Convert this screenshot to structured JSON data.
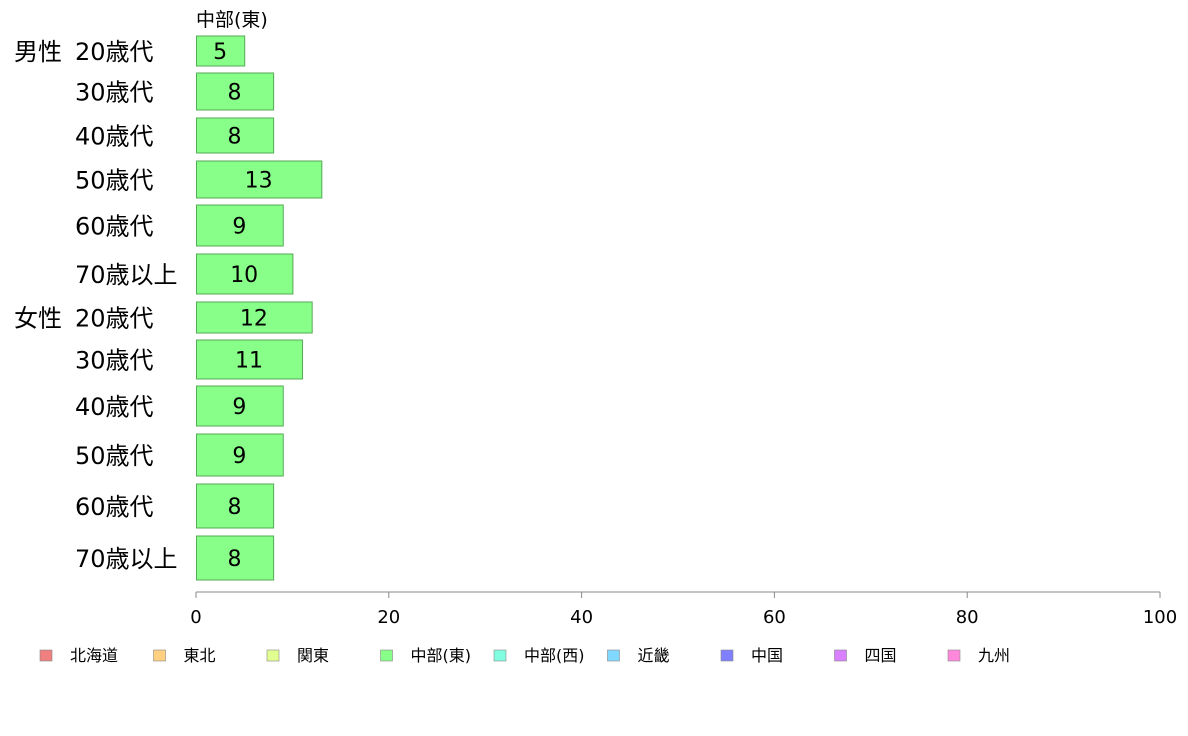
{
  "chart_data": {
    "type": "bar",
    "orientation": "horizontal",
    "series": [
      {
        "name": "中部(東)",
        "color": "#88ff88",
        "values": [
          5,
          8,
          8,
          13,
          9,
          10,
          12,
          11,
          9,
          9,
          8,
          8
        ]
      }
    ],
    "groups": [
      {
        "label": "男性",
        "categories": [
          "20歳代",
          "30歳代",
          "40歳代",
          "50歳代",
          "60歳代",
          "70歳以上"
        ]
      },
      {
        "label": "女性",
        "categories": [
          "20歳代",
          "30歳代",
          "40歳代",
          "50歳代",
          "60歳代",
          "70歳以上"
        ]
      }
    ],
    "xlim": [
      0,
      100
    ],
    "xticks": [
      0,
      20,
      40,
      60,
      80,
      100
    ],
    "grid": false,
    "legend_position": "bottom",
    "legend": [
      {
        "label": "北海道",
        "color": "#f08080"
      },
      {
        "label": "東北",
        "color": "#ffd080"
      },
      {
        "label": "関東",
        "color": "#e0ff90"
      },
      {
        "label": "中部(東)",
        "color": "#88ff88"
      },
      {
        "label": "中部(西)",
        "color": "#80ffe0"
      },
      {
        "label": "近畿",
        "color": "#80d8ff"
      },
      {
        "label": "中国",
        "color": "#8080ff"
      },
      {
        "label": "四国",
        "color": "#d880ff"
      },
      {
        "label": "九州",
        "color": "#ff88dd"
      }
    ]
  }
}
